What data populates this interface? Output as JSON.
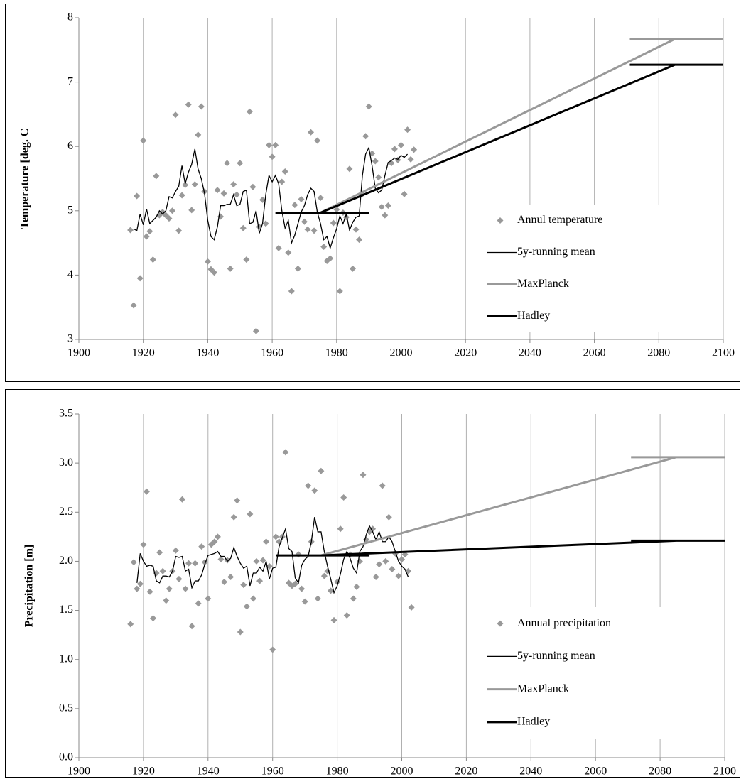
{
  "chart_data": [
    {
      "type": "line",
      "y_label": "Temperature  [deg. C",
      "xlim": [
        1900,
        2100
      ],
      "xticks": [
        1900,
        1920,
        1940,
        1960,
        1980,
        2000,
        2020,
        2040,
        2060,
        2080,
        2100
      ],
      "ylim": [
        3,
        8
      ],
      "yticks": [
        3,
        4,
        5,
        6,
        7,
        8
      ],
      "grid": "x",
      "legend": "bottom-right",
      "series": [
        {
          "name": "Annul temperature",
          "color": "#999999",
          "marker": "diamond",
          "x": [
            1916,
            1917,
            1918,
            1919,
            1920,
            1921,
            1922,
            1923,
            1924,
            1925,
            1926,
            1927,
            1928,
            1929,
            1930,
            1931,
            1932,
            1933,
            1934,
            1935,
            1936,
            1937,
            1938,
            1939,
            1940,
            1941,
            1942,
            1943,
            1944,
            1945,
            1946,
            1947,
            1948,
            1949,
            1950,
            1951,
            1952,
            1953,
            1954,
            1955,
            1956,
            1957,
            1958,
            1959,
            1960,
            1961,
            1962,
            1963,
            1964,
            1965,
            1966,
            1967,
            1968,
            1969,
            1970,
            1971,
            1972,
            1973,
            1974,
            1975,
            1976,
            1977,
            1978,
            1979,
            1980,
            1981,
            1982,
            1983,
            1984,
            1985,
            1986,
            1987,
            1988,
            1989,
            1990,
            1991,
            1992,
            1993,
            1994,
            1995,
            1996,
            1997,
            1998,
            1999,
            2000,
            2001,
            2002,
            2003,
            2004
          ],
          "values": [
            4.7,
            3.53,
            5.23,
            3.95,
            6.09,
            4.6,
            4.68,
            4.24,
            5.54,
            4.93,
            4.98,
            4.93,
            4.88,
            5.0,
            6.49,
            4.69,
            5.24,
            5.4,
            6.65,
            5.01,
            5.41,
            6.18,
            6.62,
            5.3,
            4.21,
            4.09,
            4.04,
            5.32,
            4.91,
            5.27,
            5.74,
            4.1,
            5.41,
            5.25,
            5.74,
            4.73,
            4.24,
            6.54,
            5.37,
            3.13,
            4.75,
            5.17,
            4.8,
            6.02,
            5.84,
            6.02,
            4.42,
            5.45,
            5.61,
            4.35,
            3.75,
            5.09,
            4.1,
            5.18,
            4.83,
            4.71,
            6.22,
            4.69,
            6.09,
            5.2,
            4.44,
            4.22,
            4.26,
            4.81,
            5.02,
            3.75,
            4.97,
            4.9,
            5.65,
            4.1,
            4.71,
            4.55,
            5.26,
            6.16,
            6.62,
            5.89,
            5.77,
            5.52,
            5.06,
            4.93,
            5.08,
            5.74,
            5.96,
            5.79,
            6.02,
            5.26,
            6.26,
            5.8,
            5.95
          ]
        },
        {
          "name": "5y-running mean",
          "color": "#000000",
          "width": 1.3,
          "x": [
            1917,
            1918,
            1919,
            1920,
            1921,
            1922,
            1923,
            1924,
            1925,
            1926,
            1927,
            1928,
            1929,
            1930,
            1931,
            1932,
            1933,
            1934,
            1935,
            1936,
            1937,
            1938,
            1939,
            1940,
            1941,
            1942,
            1943,
            1944,
            1945,
            1946,
            1947,
            1948,
            1949,
            1950,
            1951,
            1952,
            1953,
            1954,
            1955,
            1956,
            1957,
            1958,
            1959,
            1960,
            1961,
            1962,
            1963,
            1964,
            1965,
            1966,
            1967,
            1968,
            1969,
            1970,
            1971,
            1972,
            1973,
            1974,
            1975,
            1976,
            1977,
            1978,
            1979,
            1980,
            1981,
            1982,
            1983,
            1984,
            1985,
            1986,
            1987,
            1988,
            1989,
            1990,
            1991,
            1992,
            1993,
            1994,
            1995,
            1996,
            1997,
            1998,
            1999,
            2000,
            2001,
            2002
          ],
          "values": [
            4.72,
            4.69,
            4.95,
            4.78,
            5.03,
            4.8,
            4.85,
            4.9,
            5.0,
            4.95,
            5.0,
            5.22,
            5.2,
            5.3,
            5.38,
            5.7,
            5.42,
            5.6,
            5.72,
            5.96,
            5.65,
            5.5,
            5.27,
            4.85,
            4.6,
            4.55,
            4.75,
            5.08,
            5.08,
            5.1,
            5.1,
            5.25,
            5.08,
            5.1,
            5.3,
            5.32,
            4.8,
            4.82,
            5.0,
            4.65,
            4.8,
            5.25,
            5.55,
            5.45,
            5.55,
            5.42,
            5.0,
            4.73,
            4.85,
            4.5,
            4.62,
            4.8,
            4.98,
            5.08,
            5.25,
            5.35,
            5.3,
            4.98,
            4.8,
            4.55,
            4.6,
            4.42,
            4.58,
            4.72,
            4.92,
            4.8,
            4.95,
            4.7,
            4.82,
            4.9,
            4.92,
            5.55,
            5.88,
            5.98,
            5.7,
            5.35,
            5.28,
            5.32,
            5.55,
            5.75,
            5.78,
            5.82,
            5.8,
            5.86,
            5.83,
            5.88
          ]
        },
        {
          "name": "MaxPlanck",
          "color": "#999999",
          "width": 3,
          "x": [
            1975,
            2085,
            null,
            2071,
            2100
          ],
          "values": [
            4.97,
            7.67,
            null,
            7.67,
            7.67
          ]
        },
        {
          "name": "Hadley",
          "color": "#000000",
          "width": 3,
          "x": [
            1961,
            1990,
            null,
            1975,
            2085,
            null,
            2071,
            2100
          ],
          "values": [
            4.97,
            4.97,
            null,
            4.97,
            7.27,
            null,
            7.27,
            7.27
          ]
        }
      ]
    },
    {
      "type": "line",
      "y_label": "Precipitation  [m]",
      "xlim": [
        1900,
        2100
      ],
      "xticks": [
        1900,
        1920,
        1940,
        1960,
        1980,
        2000,
        2020,
        2040,
        2060,
        2080,
        2100
      ],
      "ylim": [
        0,
        3.5
      ],
      "yticks": [
        {
          "value": 0,
          "label": "0.0"
        },
        0.5,
        {
          "value": 1,
          "label": "1.0"
        },
        1.5,
        {
          "value": 2,
          "label": "2.0"
        },
        2.5,
        {
          "value": 3,
          "label": "3.0"
        },
        3.5
      ],
      "grid": "x",
      "legend": "bottom-right",
      "series": [
        {
          "name": "Annual precipitation",
          "color": "#999999",
          "marker": "diamond",
          "x": [
            1916,
            1917,
            1918,
            1919,
            1920,
            1921,
            1922,
            1923,
            1924,
            1925,
            1926,
            1927,
            1928,
            1929,
            1930,
            1931,
            1932,
            1933,
            1934,
            1935,
            1936,
            1937,
            1938,
            1939,
            1940,
            1941,
            1942,
            1943,
            1944,
            1945,
            1946,
            1947,
            1948,
            1949,
            1950,
            1951,
            1952,
            1953,
            1954,
            1955,
            1956,
            1957,
            1958,
            1959,
            1960,
            1961,
            1962,
            1963,
            1964,
            1965,
            1966,
            1967,
            1968,
            1969,
            1970,
            1971,
            1972,
            1973,
            1974,
            1975,
            1976,
            1977,
            1978,
            1979,
            1980,
            1981,
            1982,
            1983,
            1984,
            1985,
            1986,
            1987,
            1988,
            1989,
            1990,
            1991,
            1992,
            1993,
            1994,
            1995,
            1996,
            1997,
            1998,
            1999,
            2000,
            2001,
            2002,
            2003
          ],
          "values": [
            1.36,
            1.99,
            1.72,
            1.77,
            2.17,
            2.71,
            1.69,
            1.42,
            1.88,
            2.09,
            1.9,
            1.6,
            1.72,
            1.9,
            2.11,
            1.82,
            2.63,
            1.72,
            1.98,
            1.34,
            1.98,
            1.57,
            2.15,
            1.99,
            1.62,
            2.17,
            2.2,
            2.25,
            2.02,
            1.79,
            2.01,
            1.84,
            2.45,
            2.62,
            1.28,
            1.76,
            1.54,
            2.48,
            1.62,
            2.0,
            1.8,
            2.01,
            2.2,
            1.95,
            1.1,
            2.25,
            2.2,
            2.25,
            3.11,
            1.78,
            1.75,
            1.77,
            2.07,
            1.72,
            1.59,
            2.77,
            2.2,
            2.72,
            1.62,
            2.92,
            1.85,
            1.9,
            1.7,
            1.4,
            1.79,
            2.33,
            2.65,
            1.45,
            2.07,
            1.62,
            1.74,
            2.0,
            2.88,
            2.22,
            2.3,
            2.33,
            1.84,
            1.97,
            2.77,
            2.0,
            2.45,
            1.92,
            2.08,
            1.85,
            2.02,
            2.07,
            1.9,
            1.53
          ]
        },
        {
          "name": "5y-running mean",
          "color": "#000000",
          "width": 1.3,
          "x": [
            1918,
            1919,
            1920,
            1921,
            1922,
            1923,
            1924,
            1925,
            1926,
            1927,
            1928,
            1929,
            1930,
            1931,
            1932,
            1933,
            1934,
            1935,
            1936,
            1937,
            1938,
            1939,
            1940,
            1941,
            1942,
            1943,
            1944,
            1945,
            1946,
            1947,
            1948,
            1949,
            1950,
            1951,
            1952,
            1953,
            1954,
            1955,
            1956,
            1957,
            1958,
            1959,
            1960,
            1961,
            1962,
            1963,
            1964,
            1965,
            1966,
            1967,
            1968,
            1969,
            1970,
            1971,
            1972,
            1973,
            1974,
            1975,
            1976,
            1977,
            1978,
            1979,
            1980,
            1981,
            1982,
            1983,
            1984,
            1985,
            1986,
            1987,
            1988,
            1989,
            1990,
            1991,
            1992,
            1993,
            1994,
            1995,
            1996,
            1997,
            1998,
            1999,
            2000,
            2001,
            2002
          ],
          "values": [
            1.78,
            2.08,
            2.0,
            1.95,
            1.96,
            1.95,
            1.8,
            1.78,
            1.85,
            1.85,
            1.84,
            1.9,
            2.05,
            2.04,
            2.05,
            1.9,
            1.92,
            1.73,
            1.8,
            1.8,
            1.86,
            1.97,
            2.06,
            2.07,
            2.08,
            2.1,
            2.05,
            2.05,
            2.0,
            2.03,
            2.14,
            2.05,
            1.98,
            1.93,
            1.95,
            1.75,
            1.88,
            1.88,
            1.94,
            1.9,
            2.0,
            1.82,
            1.93,
            1.94,
            2.15,
            2.24,
            2.33,
            2.13,
            2.1,
            1.83,
            1.78,
            1.96,
            2.02,
            2.05,
            2.2,
            2.45,
            2.3,
            2.3,
            2.1,
            1.95,
            1.82,
            1.68,
            1.75,
            1.87,
            2.02,
            2.1,
            2.03,
            1.93,
            1.88,
            2.1,
            2.15,
            2.27,
            2.36,
            2.3,
            2.22,
            2.3,
            2.2,
            2.2,
            2.25,
            2.2,
            2.1,
            2.0,
            1.95,
            1.92,
            1.84
          ]
        },
        {
          "name": "MaxPlanck",
          "color": "#999999",
          "width": 3,
          "x": [
            1975,
            2085,
            null,
            2071,
            2100
          ],
          "values": [
            2.06,
            3.06,
            null,
            3.06,
            3.06
          ]
        },
        {
          "name": "Hadley",
          "color": "#000000",
          "width": 3,
          "x": [
            1961,
            1990,
            null,
            1975,
            2085,
            null,
            2071,
            2100
          ],
          "values": [
            2.06,
            2.06,
            null,
            2.06,
            2.21,
            null,
            2.21,
            2.21
          ]
        }
      ]
    }
  ]
}
